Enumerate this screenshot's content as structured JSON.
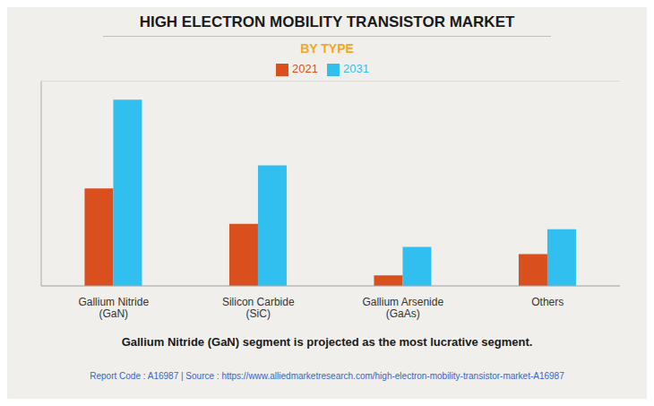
{
  "chart_data": {
    "type": "bar",
    "title": "HIGH ELECTRON MOBILITY TRANSISTOR MARKET",
    "subtitle": "BY TYPE",
    "categories": [
      "Gallium Nitride\n(GaN)",
      "Silicon Carbide\n(SiC)",
      "Gallium Arsenide\n(GaAs)",
      "Others"
    ],
    "series": [
      {
        "name": "2021",
        "color": "#d94f1e",
        "values": [
          5.5,
          3.5,
          0.6,
          1.8
        ]
      },
      {
        "name": "2031",
        "color": "#30bfef",
        "values": [
          10.5,
          6.8,
          2.2,
          3.2
        ]
      }
    ],
    "ylim": [
      0,
      11.55
    ],
    "yticks": [
      0,
      2,
      4,
      6,
      8,
      10
    ],
    "grid": true,
    "legend": "top",
    "tick_labels": "x",
    "annotations": [
      "Gallium Nitride (GaN) segment is projected as the most lucrative segment.",
      "Report Code : A16987  |  Source : https://www.alliedmarketresearch.com/high-electron-mobility-transistor-market-A16987"
    ]
  }
}
